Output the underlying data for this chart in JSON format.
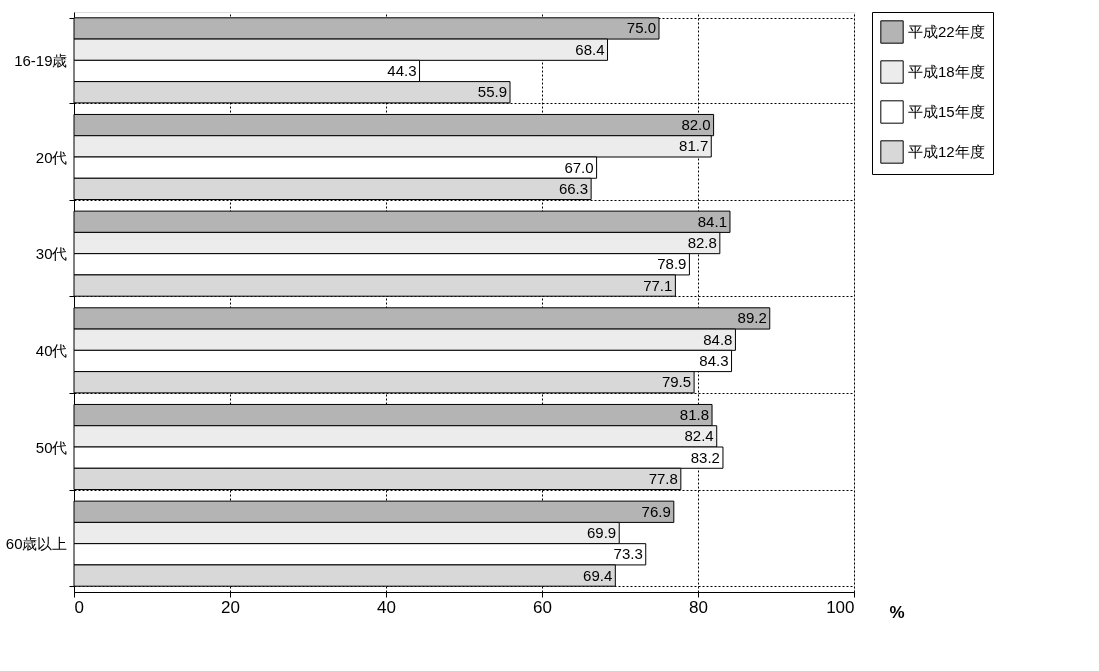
{
  "chart_data": {
    "type": "bar",
    "orientation": "horizontal",
    "categories": [
      "16-19歳",
      "20代",
      "30代",
      "40代",
      "50代",
      "60歳以上"
    ],
    "series": [
      {
        "name": "平成22年度",
        "color": "#b4b4b4",
        "values": [
          75.0,
          82.0,
          84.1,
          89.2,
          81.8,
          76.9
        ],
        "value_labels": [
          "75.0",
          "82.0",
          "84.1",
          "89.2",
          "81.8",
          "76.9"
        ]
      },
      {
        "name": "平成18年度",
        "color": "#ececec",
        "values": [
          68.4,
          81.7,
          82.8,
          84.8,
          82.4,
          69.9
        ],
        "value_labels": [
          "68.4",
          "81.7",
          "82.8",
          "84.8",
          "82.4",
          "69.9"
        ]
      },
      {
        "name": "平成15年度",
        "color": "#ffffff",
        "values": [
          44.3,
          67.0,
          78.9,
          84.3,
          83.2,
          73.3
        ],
        "value_labels": [
          "44.3",
          "67.0",
          "78.9",
          "84.3",
          "83.2",
          "73.3"
        ]
      },
      {
        "name": "平成12年度",
        "color": "#d8d8d8",
        "values": [
          55.9,
          66.3,
          77.1,
          79.5,
          77.8,
          69.4
        ],
        "value_labels": [
          "55.9",
          "66.3",
          "77.1",
          "79.5",
          "77.8",
          "69.4"
        ]
      }
    ],
    "xlim": [
      0,
      100
    ],
    "xticks": [
      0,
      20,
      40,
      60,
      80,
      100
    ],
    "xlabel": "%",
    "grid": true,
    "legend": "right"
  }
}
